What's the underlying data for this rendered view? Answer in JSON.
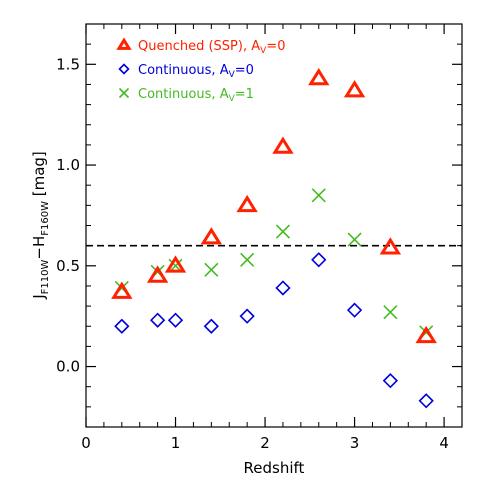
{
  "chart_data": {
    "type": "scatter",
    "xlabel": "Redshift",
    "ylabel": {
      "parts": [
        "J",
        "F110W",
        "−H",
        "F160W",
        " [mag]"
      ]
    },
    "xlim": [
      0,
      4.2
    ],
    "ylim": [
      -0.3,
      1.7
    ],
    "xticks": [
      0,
      1,
      2,
      3,
      4
    ],
    "xtick_labels": [
      "0",
      "1",
      "2",
      "3",
      "4"
    ],
    "yticks": [
      0.0,
      0.5,
      1.0,
      1.5
    ],
    "ytick_labels": [
      "0.0",
      "0.5",
      "1.0",
      "1.5"
    ],
    "grid": false,
    "legend_position": "top-left",
    "reference_line": {
      "y": 0.6,
      "style": "dashed",
      "color": "#000000"
    },
    "series": [
      {
        "name": "Quenched (SSP), A",
        "name_sub": "V",
        "name_suffix": "=0",
        "marker": "triangle",
        "color": "#ff2200",
        "x": [
          0.4,
          0.8,
          1.0,
          1.4,
          1.8,
          2.2,
          2.6,
          3.0,
          3.4,
          3.8
        ],
        "y": [
          0.37,
          0.45,
          0.5,
          0.64,
          0.8,
          1.09,
          1.43,
          1.37,
          0.59,
          0.15
        ]
      },
      {
        "name": "Continuous, A",
        "name_sub": "V",
        "name_suffix": "=0",
        "marker": "diamond",
        "color": "#0000dd",
        "x": [
          0.4,
          0.8,
          1.0,
          1.4,
          1.8,
          2.2,
          2.6,
          3.0,
          3.4,
          3.8
        ],
        "y": [
          0.2,
          0.23,
          0.23,
          0.2,
          0.25,
          0.39,
          0.53,
          0.28,
          -0.07,
          -0.17
        ]
      },
      {
        "name": "Continuous, A",
        "name_sub": "V",
        "name_suffix": "=1",
        "marker": "x",
        "color": "#44bb22",
        "x": [
          0.4,
          0.8,
          1.0,
          1.4,
          1.8,
          2.2,
          2.6,
          3.0,
          3.4,
          3.8
        ],
        "y": [
          0.39,
          0.47,
          0.5,
          0.48,
          0.53,
          0.67,
          0.85,
          0.63,
          0.27,
          0.17
        ]
      }
    ]
  }
}
